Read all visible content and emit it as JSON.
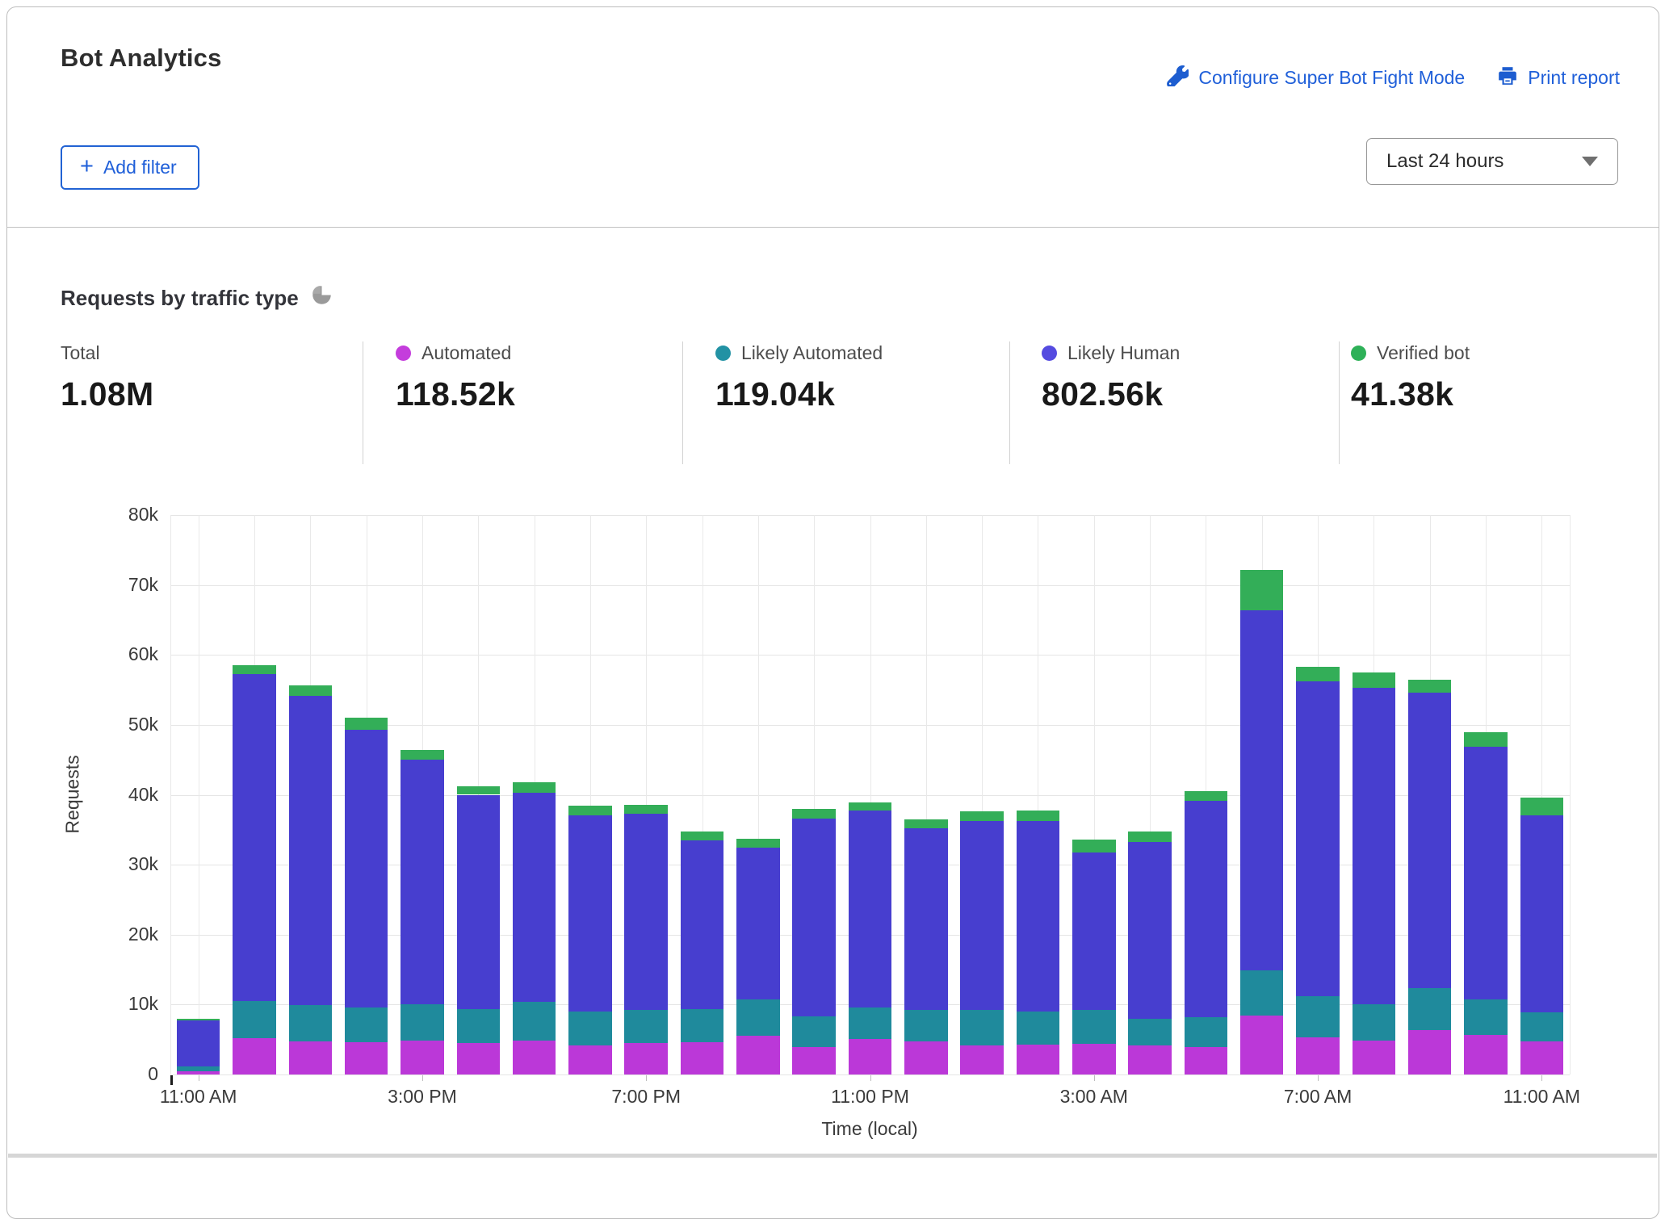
{
  "header": {
    "title": "Bot Analytics",
    "configure_link": "Configure Super Bot Fight Mode",
    "print_link": "Print report",
    "add_filter_label": "Add filter",
    "time_range_value": "Last 24 hours"
  },
  "section": {
    "heading": "Requests by traffic type"
  },
  "colors": {
    "link_blue": "#1f5fd9",
    "automated": "#bb38d8",
    "likely_automated": "#1f8a9c",
    "likely_human": "#473ecf",
    "verified_bot": "#33ae58"
  },
  "stats": [
    {
      "label": "Total",
      "value": "1.08M",
      "color": null
    },
    {
      "label": "Automated",
      "value": "118.52k",
      "color": "#c43ddc"
    },
    {
      "label": "Likely Automated",
      "value": "119.04k",
      "color": "#2292a4"
    },
    {
      "label": "Likely Human",
      "value": "802.56k",
      "color": "#554be0"
    },
    {
      "label": "Verified bot",
      "value": "41.38k",
      "color": "#2eb158"
    }
  ],
  "chart_data": {
    "type": "bar",
    "stacked": true,
    "title": "Requests by traffic type",
    "xlabel": "Time (local)",
    "ylabel": "Requests",
    "ylim": [
      0,
      80000
    ],
    "grid": true,
    "legend_position": "top-stats-row",
    "y_tick_labels": [
      "0",
      "10k",
      "20k",
      "30k",
      "40k",
      "50k",
      "60k",
      "70k",
      "80k"
    ],
    "x_tick_indices": [
      0,
      4,
      8,
      12,
      16,
      20,
      24
    ],
    "x_tick_labels": [
      "11:00 AM",
      "3:00 PM",
      "7:00 PM",
      "11:00 PM",
      "3:00 AM",
      "7:00 AM",
      "11:00 AM"
    ],
    "categories": [
      "11:00 AM",
      "12:00 PM",
      "1:00 PM",
      "2:00 PM",
      "3:00 PM",
      "4:00 PM",
      "5:00 PM",
      "6:00 PM",
      "7:00 PM",
      "8:00 PM",
      "9:00 PM",
      "10:00 PM",
      "11:00 PM",
      "12:00 AM",
      "1:00 AM",
      "2:00 AM",
      "3:00 AM",
      "4:00 AM",
      "5:00 AM",
      "6:00 AM",
      "7:00 AM",
      "8:00 AM",
      "9:00 AM",
      "10:00 AM",
      "11:00 AM"
    ],
    "series": [
      {
        "name": "Automated",
        "color": "#bb38d8",
        "values": [
          500,
          5200,
          4700,
          4600,
          4900,
          4500,
          4900,
          4200,
          4500,
          4600,
          5500,
          3900,
          5100,
          4700,
          4200,
          4300,
          4400,
          4100,
          3900,
          8400,
          5300,
          4800,
          6400,
          5700,
          4700
        ]
      },
      {
        "name": "Likely Automated",
        "color": "#1f8a9c",
        "values": [
          700,
          5300,
          5200,
          5000,
          5100,
          4900,
          5500,
          4800,
          4700,
          4700,
          5200,
          4400,
          4500,
          4500,
          5000,
          4700,
          4800,
          3900,
          4300,
          6500,
          5900,
          5300,
          5900,
          5000,
          4200
        ]
      },
      {
        "name": "Likely Human",
        "color": "#473ecf",
        "values": [
          6500,
          46800,
          44200,
          39700,
          35000,
          30600,
          29900,
          28000,
          28100,
          24200,
          21700,
          28300,
          28100,
          26000,
          27000,
          27300,
          22600,
          25200,
          30900,
          51500,
          45000,
          45200,
          42300,
          36200,
          28100
        ]
      },
      {
        "name": "Verified bot",
        "color": "#33ae58",
        "values": [
          300,
          1200,
          1500,
          1700,
          1400,
          1200,
          1500,
          1400,
          1300,
          1300,
          1300,
          1400,
          1200,
          1300,
          1400,
          1400,
          1800,
          1500,
          1400,
          5800,
          2100,
          2200,
          1900,
          2100,
          2600
        ]
      }
    ]
  }
}
